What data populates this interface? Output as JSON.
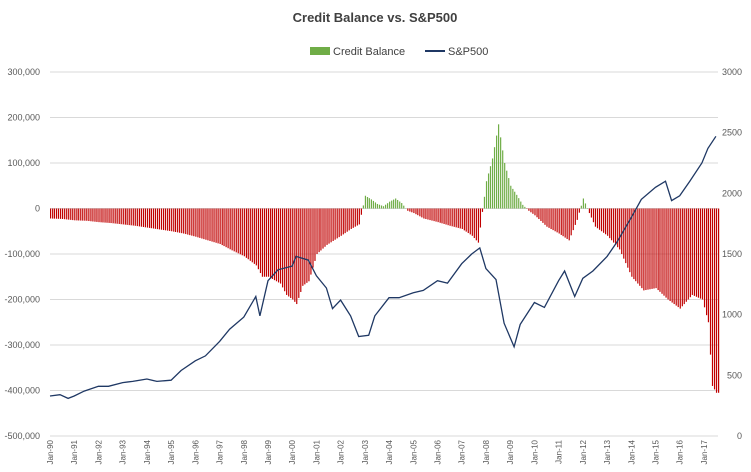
{
  "chart_data": {
    "type": "bar",
    "title": "Credit Balance vs. S&P500",
    "xlabel": "",
    "ylabel": "",
    "legend_position": "top-center",
    "grid": true,
    "colors": {
      "credit_positive": "#70ad47",
      "credit_negative": "#c00000",
      "sp500": "#1f3864"
    },
    "y_left": {
      "min": -500000,
      "max": 300000,
      "ticks": [
        "300,000",
        "200,000",
        "100,000",
        "0",
        "-100,000",
        "-200,000",
        "-300,000",
        "-400,000",
        "-500,000"
      ]
    },
    "y_right": {
      "min": 0,
      "max": 3000,
      "ticks": [
        "3000",
        "2500",
        "2000",
        "1500",
        "1000",
        "500",
        "0"
      ]
    },
    "x_tick_labels": [
      "Jan-90",
      "Jan-91",
      "Jan-92",
      "Jan-93",
      "Jan-94",
      "Jan-95",
      "Jan-96",
      "Jan-97",
      "Jan-98",
      "Jan-99",
      "Jan-00",
      "Jan-01",
      "Jan-02",
      "Jan-03",
      "Jan-04",
      "Jan-05",
      "Jan-06",
      "Jan-07",
      "Jan-08",
      "Jan-09",
      "Jan-10",
      "Jan-11",
      "Jan-12",
      "Jan-13",
      "Jan-14",
      "Jan-15",
      "Jan-16",
      "Jan-17"
    ],
    "series": [
      {
        "name": "Credit Balance",
        "kind": "bar",
        "axis": "left",
        "months": [
          "1990-01",
          "1990-07",
          "1991-01",
          "1991-07",
          "1992-01",
          "1992-07",
          "1993-01",
          "1993-07",
          "1994-01",
          "1994-07",
          "1995-01",
          "1995-07",
          "1996-01",
          "1996-07",
          "1997-01",
          "1997-07",
          "1998-01",
          "1998-07",
          "1998-10",
          "1999-01",
          "1999-07",
          "1999-10",
          "2000-01",
          "2000-03",
          "2000-06",
          "2000-09",
          "2001-01",
          "2001-06",
          "2002-01",
          "2002-06",
          "2002-10",
          "2003-01",
          "2003-04",
          "2003-07",
          "2003-10",
          "2004-01",
          "2004-04",
          "2004-07",
          "2004-10",
          "2005-01",
          "2005-06",
          "2006-01",
          "2006-07",
          "2007-01",
          "2007-06",
          "2007-09",
          "2008-01",
          "2008-04",
          "2008-07",
          "2008-10",
          "2009-01",
          "2009-04",
          "2009-07",
          "2009-10",
          "2010-01",
          "2010-07",
          "2011-01",
          "2011-06",
          "2011-10",
          "2012-01",
          "2012-04",
          "2012-07",
          "2013-01",
          "2013-07",
          "2014-01",
          "2014-07",
          "2015-01",
          "2015-07",
          "2016-01",
          "2016-07",
          "2016-12",
          "2017-03",
          "2017-05",
          "2017-07"
        ],
        "values": [
          -22000,
          -23000,
          -26000,
          -27000,
          -30000,
          -32000,
          -35000,
          -38000,
          -42000,
          -46000,
          -50000,
          -55000,
          -62000,
          -70000,
          -78000,
          -92000,
          -105000,
          -125000,
          -150000,
          -150000,
          -165000,
          -190000,
          -200000,
          -210000,
          -170000,
          -160000,
          -100000,
          -80000,
          -60000,
          -45000,
          -35000,
          28000,
          20000,
          10000,
          5000,
          15000,
          22000,
          12000,
          -5000,
          -10000,
          -22000,
          -30000,
          -38000,
          -45000,
          -60000,
          -75000,
          60000,
          110000,
          185000,
          100000,
          50000,
          30000,
          8000,
          -5000,
          -15000,
          -40000,
          -55000,
          -70000,
          -25000,
          22000,
          -10000,
          -40000,
          -60000,
          -90000,
          -150000,
          -180000,
          -175000,
          -200000,
          -220000,
          -190000,
          -200000,
          -250000,
          -390000,
          -405000
        ]
      },
      {
        "name": "S&P500",
        "kind": "line",
        "axis": "right",
        "months": [
          "1990-01",
          "1990-06",
          "1990-10",
          "1991-01",
          "1991-06",
          "1992-01",
          "1992-06",
          "1993-01",
          "1993-06",
          "1994-01",
          "1994-06",
          "1995-01",
          "1995-06",
          "1996-01",
          "1996-06",
          "1997-01",
          "1997-06",
          "1998-01",
          "1998-07",
          "1998-09",
          "1999-01",
          "1999-06",
          "2000-01",
          "2000-03",
          "2000-09",
          "2001-01",
          "2001-06",
          "2001-09",
          "2002-01",
          "2002-06",
          "2002-10",
          "2003-03",
          "2003-06",
          "2004-01",
          "2004-06",
          "2005-01",
          "2005-06",
          "2006-01",
          "2006-06",
          "2007-01",
          "2007-06",
          "2007-10",
          "2008-01",
          "2008-06",
          "2008-10",
          "2009-03",
          "2009-06",
          "2010-01",
          "2010-06",
          "2011-01",
          "2011-04",
          "2011-09",
          "2012-01",
          "2012-06",
          "2013-01",
          "2013-06",
          "2014-01",
          "2014-06",
          "2015-01",
          "2015-06",
          "2015-09",
          "2016-01",
          "2016-06",
          "2016-12",
          "2017-03",
          "2017-07"
        ],
        "values": [
          330,
          340,
          310,
          330,
          370,
          410,
          410,
          440,
          450,
          470,
          450,
          460,
          540,
          620,
          660,
          780,
          880,
          980,
          1150,
          990,
          1280,
          1370,
          1400,
          1480,
          1450,
          1320,
          1220,
          1050,
          1120,
          990,
          820,
          830,
          990,
          1140,
          1140,
          1180,
          1200,
          1280,
          1260,
          1420,
          1500,
          1550,
          1380,
          1290,
          930,
          735,
          920,
          1100,
          1060,
          1280,
          1360,
          1150,
          1300,
          1360,
          1480,
          1600,
          1800,
          1950,
          2050,
          2100,
          1940,
          1980,
          2100,
          2250,
          2370,
          2470
        ]
      }
    ]
  }
}
